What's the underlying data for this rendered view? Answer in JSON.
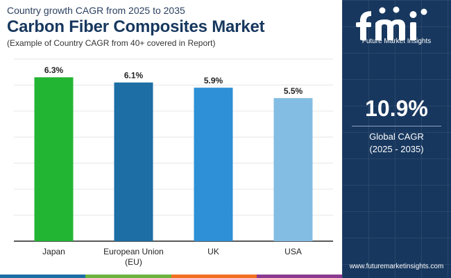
{
  "header": {
    "subtitle": "Country growth CAGR from 2025 to 2035",
    "title": "Carbon Fiber Composites Market",
    "note": "(Example of Country CAGR from 40+ covered in Report)"
  },
  "chart_data": {
    "type": "bar",
    "categories": [
      "Japan",
      "European Union (EU)",
      "UK",
      "USA"
    ],
    "values": [
      6.3,
      6.1,
      5.9,
      5.5
    ],
    "value_labels": [
      "6.3%",
      "6.1%",
      "5.9%",
      "5.5%"
    ],
    "bar_colors": [
      "#22b533",
      "#1c6ea4",
      "#2e90d6",
      "#84bde3"
    ],
    "ylim": [
      0,
      7
    ],
    "grid": true,
    "title": "",
    "xlabel": "",
    "ylabel": ""
  },
  "sidebar": {
    "logo_text": "Future Market Insights",
    "global_cagr_value": "10.9%",
    "global_cagr_label": "Global CAGR",
    "global_cagr_period": "(2025 - 2035)",
    "url": "www.futuremarketinsights.com"
  },
  "colors": {
    "sidebar_bg": "#17375e",
    "title": "#17375e",
    "bottom_stripe": [
      "#1c6ea4",
      "#6cb33f",
      "#f36f21",
      "#8b3a8f"
    ]
  }
}
